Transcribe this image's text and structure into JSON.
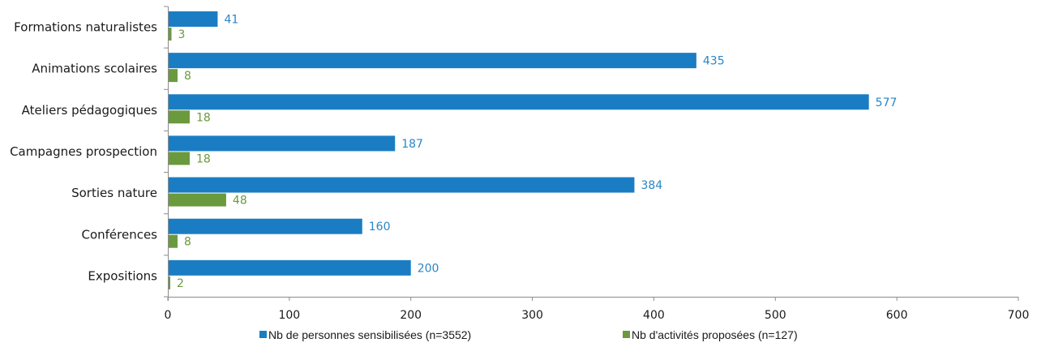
{
  "chart_data": {
    "type": "bar",
    "orientation": "horizontal",
    "categories": [
      "Formations naturalistes",
      "Animations scolaires",
      "Ateliers pédagogiques",
      "Campagnes prospection",
      "Sorties nature",
      "Conférences",
      "Expositions"
    ],
    "series": [
      {
        "name": "Nb de personnes sensibilisées (n=3552)",
        "values": [
          41,
          435,
          577,
          187,
          384,
          160,
          200
        ],
        "color": "#1a7dc4",
        "label_color": "#2a86c7"
      },
      {
        "name": "Nb d'activités proposées (n=127)",
        "values": [
          3,
          8,
          18,
          18,
          48,
          8,
          2
        ],
        "color": "#6a9a3d",
        "label_color": "#6a9a3d"
      }
    ],
    "xlim": [
      0,
      700
    ],
    "xticks": [
      "0",
      "100",
      "200",
      "300",
      "400",
      "500",
      "600",
      "700"
    ],
    "title": "",
    "xlabel": "",
    "ylabel": "",
    "grid": false,
    "legend_position": "bottom"
  }
}
